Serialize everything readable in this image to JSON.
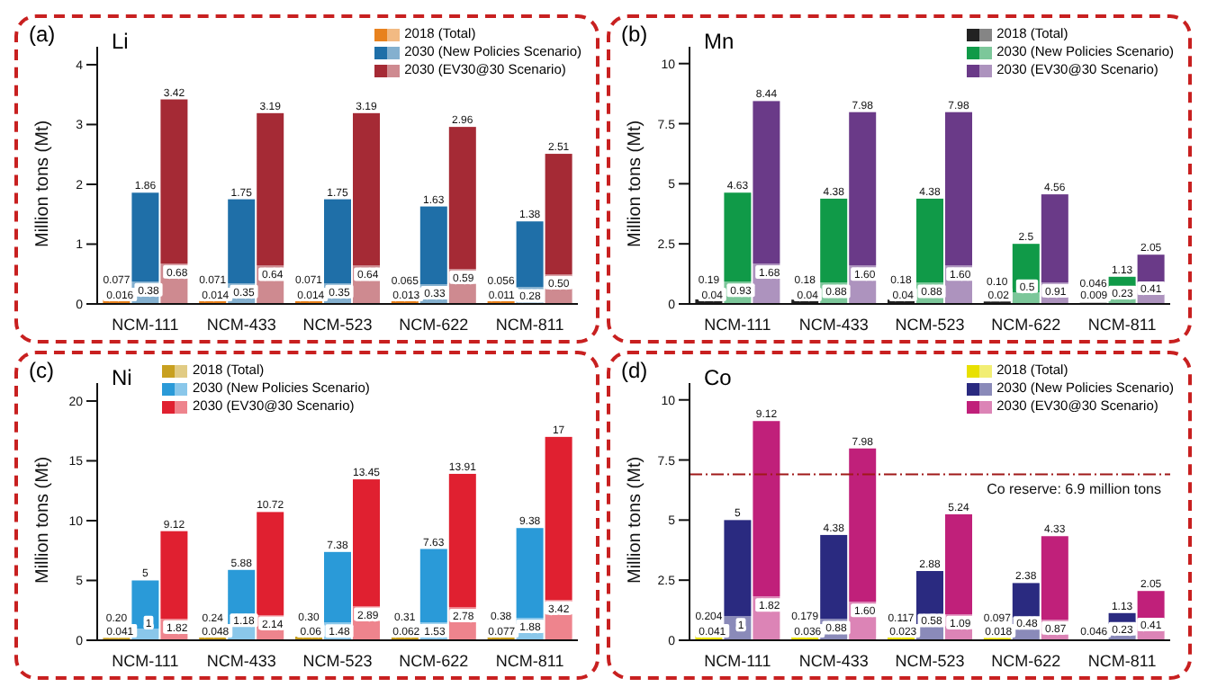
{
  "chart_data": [
    {
      "type": "bar",
      "title": "Li",
      "ylabel": "Million tons (Mt)",
      "categories": [
        "NCM-111",
        "NCM-433",
        "NCM-523",
        "NCM-622",
        "NCM-811"
      ],
      "ylim": [
        0,
        4.3
      ],
      "yticks": [
        0,
        1,
        2,
        3,
        4
      ],
      "legend": "top right",
      "series": [
        {
          "name": "2018 (Total)",
          "color": "#e8821e",
          "values": [
            0.077,
            0.071,
            0.071,
            0.065,
            0.056
          ]
        },
        {
          "name": "2030 (New Policies Scenario)",
          "color": "#1f6fa8",
          "values": [
            1.86,
            1.75,
            1.75,
            1.63,
            1.38
          ]
        },
        {
          "name": "2030 (EV30@30 Scenario)",
          "color": "#a52a35",
          "values": [
            3.42,
            3.19,
            3.19,
            2.96,
            2.51
          ]
        }
      ],
      "data_labels": true,
      "annotations": [
        "(a)",
        "0.016",
        "0.38",
        "0.68",
        "0.014",
        "0.35",
        "0.64",
        "0.014",
        "0.35",
        "0.64",
        "0.013",
        "0.33",
        "0.59",
        "0.011",
        "0.28",
        "0.50"
      ]
    },
    {
      "type": "bar",
      "title": "Mn",
      "ylabel": "Million tons (Mt)",
      "categories": [
        "NCM-111",
        "NCM-433",
        "NCM-523",
        "NCM-622",
        "NCM-811"
      ],
      "ylim": [
        0,
        10.7
      ],
      "yticks": [
        0,
        2.5,
        5,
        7.5,
        10
      ],
      "legend": "top right",
      "series": [
        {
          "name": "2018 (Total)",
          "color": "#222222",
          "values": [
            0.19,
            0.18,
            0.18,
            0.1,
            0.046
          ],
          "value_labels": [
            "0.19",
            "0.18",
            "0.18",
            "0.10",
            "0.046"
          ]
        },
        {
          "name": "2030 (New Policies Scenario)",
          "color": "#109a48",
          "values": [
            4.63,
            4.38,
            4.38,
            2.5,
            1.13
          ]
        },
        {
          "name": "2030 (EV30@30 Scenario)",
          "color": "#6a3a88",
          "values": [
            8.44,
            7.98,
            7.98,
            4.56,
            2.05
          ]
        }
      ],
      "data_labels": true,
      "annotations": [
        "(b)",
        "0.04",
        "0.93",
        "1.68",
        "0.04",
        "0.88",
        "1.60",
        "0.04",
        "0.88",
        "1.60",
        "0.02",
        "0.5",
        "0.91",
        "0.009",
        "0.23",
        "0.41"
      ]
    },
    {
      "type": "bar",
      "title": "Ni",
      "ylabel": "Million tons (Mt)",
      "categories": [
        "NCM-111",
        "NCM-433",
        "NCM-523",
        "NCM-622",
        "NCM-811"
      ],
      "ylim": [
        0,
        21.5
      ],
      "yticks": [
        0,
        5,
        10,
        15,
        20
      ],
      "legend": "top left",
      "series": [
        {
          "name": "2018 (Total)",
          "color": "#c8a020",
          "values": [
            0.2,
            0.24,
            0.3,
            0.31,
            0.38
          ],
          "value_labels": [
            "0.20",
            "0.24",
            "0.30",
            "0.31",
            "0.38"
          ]
        },
        {
          "name": "2030 (New Policies Scenario)",
          "color": "#2a9ad8",
          "values": [
            5,
            5.88,
            7.38,
            7.63,
            9.38
          ]
        },
        {
          "name": "2030 (EV30@30 Scenario)",
          "color": "#e02030",
          "values": [
            9.12,
            10.72,
            13.45,
            13.91,
            17
          ]
        }
      ],
      "data_labels": true,
      "annotations": [
        "(c)",
        "0.041",
        "1",
        "1.82",
        "0.048",
        "1.18",
        "2.14",
        "0.06",
        "1.48",
        "2.89",
        "0.062",
        "1.53",
        "2.78",
        "0.077",
        "1.88",
        "3.42"
      ]
    },
    {
      "type": "bar",
      "title": "Co",
      "ylabel": "Million tons (Mt)",
      "categories": [
        "NCM-111",
        "NCM-433",
        "NCM-523",
        "NCM-622",
        "NCM-811"
      ],
      "ylim": [
        0,
        10.7
      ],
      "yticks": [
        0,
        2.5,
        5,
        7.5,
        10
      ],
      "legend": "top right",
      "ref_lines": [
        {
          "axis": "y",
          "value": 6.9,
          "label": "Co reserve: 6.9  million tons",
          "color": "#a01818",
          "line_style": "dashdot"
        }
      ],
      "series": [
        {
          "name": "2018 (Total)",
          "color": "#e8e000",
          "values": [
            0.204,
            0.179,
            0.117,
            0.097,
            null
          ]
        },
        {
          "name": "2030 (New Policies Scenario)",
          "color": "#2a2a80",
          "values": [
            5,
            4.38,
            2.88,
            2.38,
            1.13
          ]
        },
        {
          "name": "2030 (EV30@30 Scenario)",
          "color": "#c0207a",
          "values": [
            9.12,
            7.98,
            5.24,
            4.33,
            2.05
          ]
        }
      ],
      "data_labels": true,
      "annotations": [
        "(d)",
        "0.041",
        "1",
        "1.82",
        "0.036",
        "0.88",
        "1.60",
        "0.023",
        "0.58",
        "1.09",
        "0.018",
        "0.48",
        "0.87",
        "0.046",
        "0.23",
        "0.41"
      ]
    }
  ]
}
